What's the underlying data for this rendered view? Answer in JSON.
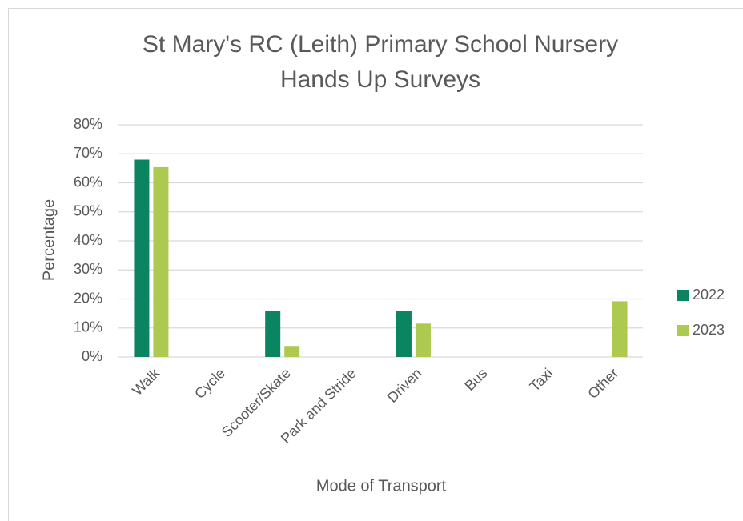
{
  "chart_data": {
    "type": "bar",
    "title": [
      "St Mary's RC (Leith) Primary School Nursery",
      "Hands Up Surveys"
    ],
    "x_label": "Mode of Transport",
    "y_label": "Percentage",
    "categories": [
      "Walk",
      "Cycle",
      "Scooter/Skate",
      "Park and Stride",
      "Driven",
      "Bus",
      "Taxi",
      "Other"
    ],
    "series": [
      {
        "name": "2022",
        "color": "#0b8462",
        "values": [
          68,
          0,
          16,
          0,
          16,
          0,
          0,
          0
        ]
      },
      {
        "name": "2023",
        "color": "#adc94f",
        "values": [
          65.4,
          0,
          3.8,
          0,
          11.5,
          0,
          0,
          19.2
        ]
      }
    ],
    "ylim": [
      0,
      80
    ],
    "yticks": [
      {
        "value": 0,
        "label": "0%"
      },
      {
        "value": 10,
        "label": "10%"
      },
      {
        "value": 20,
        "label": "20%"
      },
      {
        "value": 30,
        "label": "30%"
      },
      {
        "value": 40,
        "label": "40%"
      },
      {
        "value": 50,
        "label": "50%"
      },
      {
        "value": 60,
        "label": "60%"
      },
      {
        "value": 70,
        "label": "70%"
      },
      {
        "value": 80,
        "label": "80%"
      }
    ],
    "grid": true,
    "legend": "right"
  }
}
